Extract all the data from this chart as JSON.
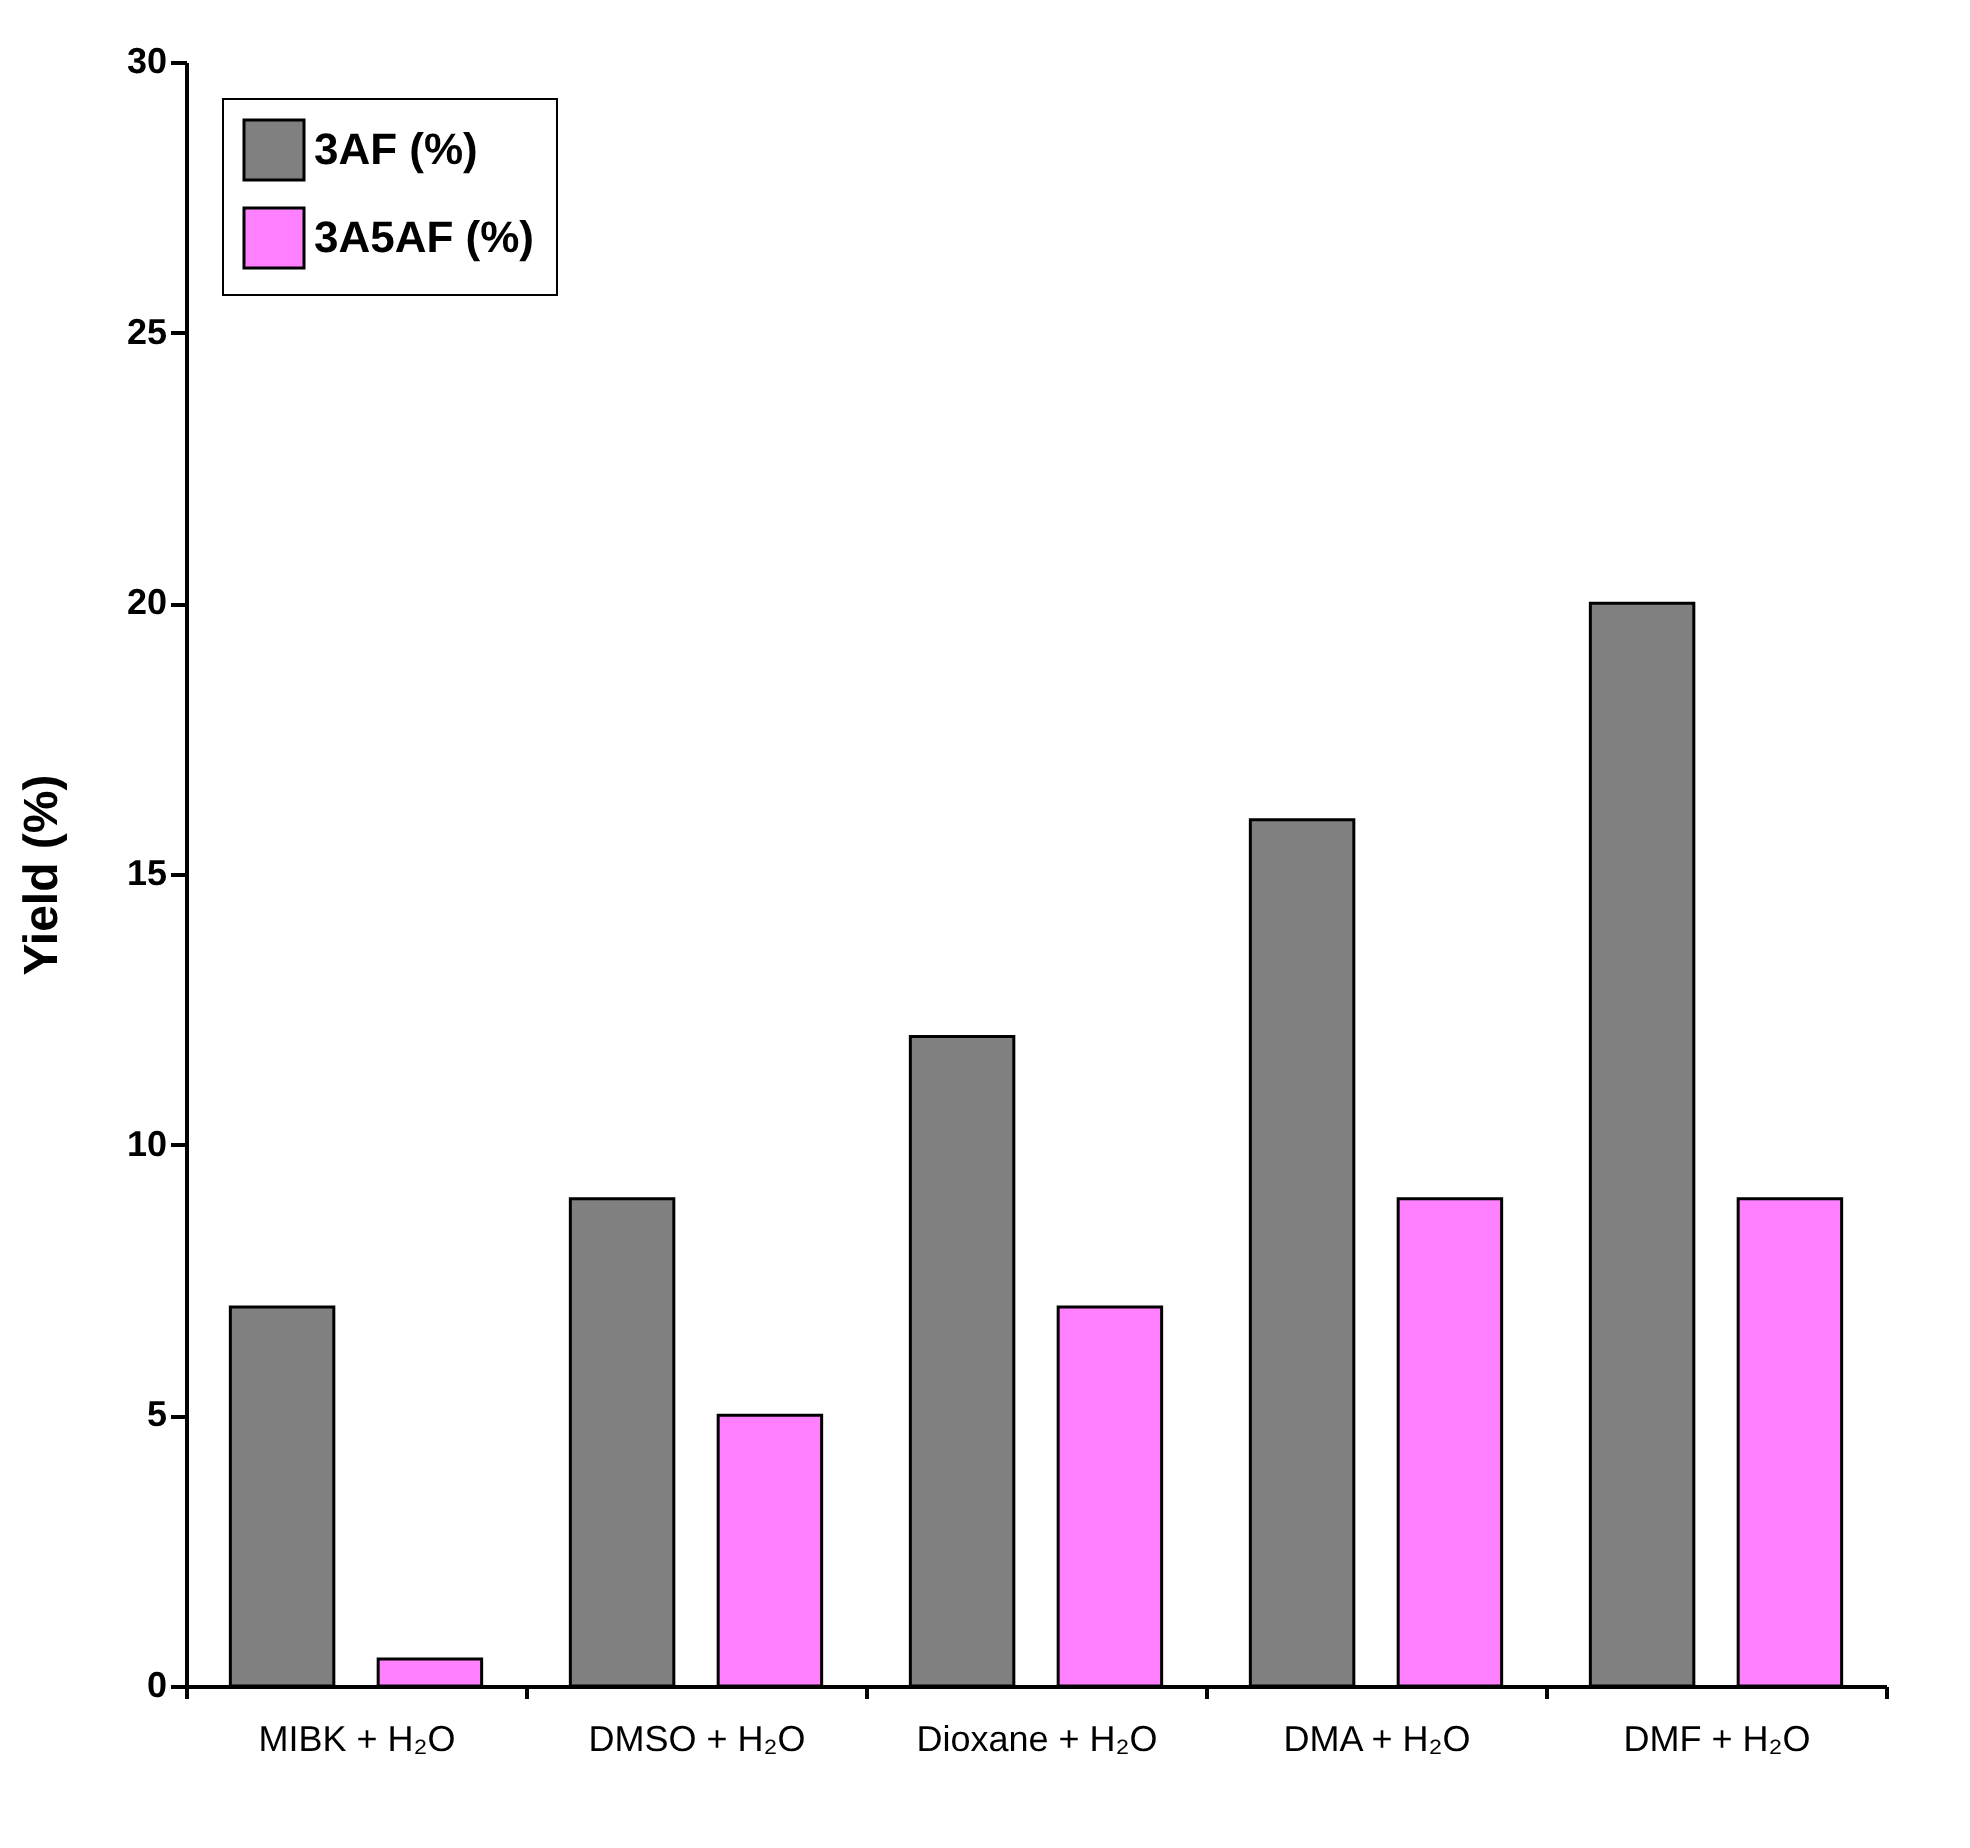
{
  "chart_data": {
    "type": "bar",
    "ylabel": "Yield (%)",
    "categories": [
      "MIBK + H₂O",
      "DMSO + H₂O",
      "Dioxane + H₂O",
      "DMA + H₂O",
      "DMF + H₂O"
    ],
    "series": [
      {
        "name": "3AF (%)",
        "color": "#808080",
        "values": [
          7,
          9,
          12,
          16,
          20
        ]
      },
      {
        "name": "3A5AF (%)",
        "color": "#ff80ff",
        "values": [
          0.5,
          5,
          7,
          9,
          9
        ]
      }
    ],
    "ylim": [
      0,
      30
    ],
    "yticks": [
      0,
      5,
      10,
      15,
      20,
      25,
      30
    ],
    "grid": false,
    "legend": "top left"
  }
}
